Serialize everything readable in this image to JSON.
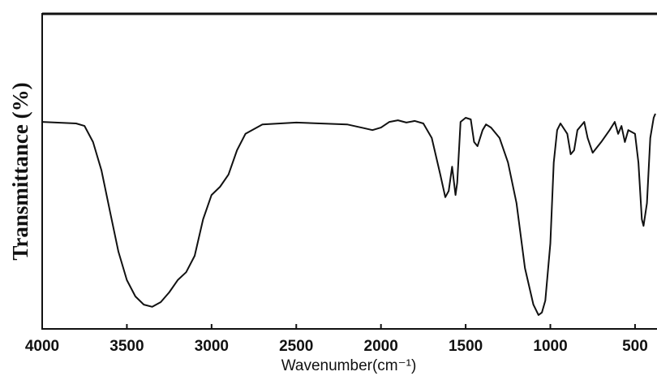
{
  "chart_data": {
    "type": "line",
    "x_label": "Wavenumber(cm⁻¹)",
    "y_label": "Transmittance (%)",
    "xlim": [
      4000,
      380
    ],
    "ylim": [
      0,
      100
    ],
    "xticks": [
      4000,
      3500,
      3000,
      2500,
      2000,
      1500,
      1000,
      500
    ],
    "color": "#111111",
    "x": [
      4000,
      3800,
      3750,
      3700,
      3650,
      3600,
      3550,
      3500,
      3450,
      3400,
      3350,
      3300,
      3250,
      3200,
      3150,
      3100,
      3050,
      3000,
      2950,
      2900,
      2850,
      2800,
      2700,
      2500,
      2200,
      2100,
      2050,
      2000,
      1950,
      1900,
      1850,
      1800,
      1750,
      1700,
      1650,
      1620,
      1600,
      1580,
      1560,
      1550,
      1530,
      1500,
      1470,
      1450,
      1430,
      1400,
      1380,
      1350,
      1300,
      1250,
      1200,
      1150,
      1100,
      1070,
      1050,
      1030,
      1000,
      980,
      960,
      940,
      900,
      880,
      860,
      840,
      800,
      780,
      750,
      700,
      650,
      620,
      600,
      580,
      560,
      540,
      500,
      480,
      460,
      450,
      430,
      410,
      390,
      380
    ],
    "values": [
      65.7,
      65.2,
      64.4,
      59.3,
      50.3,
      37.4,
      24.5,
      15.5,
      10.3,
      7.7,
      7.0,
      8.5,
      11.6,
      15.5,
      18.0,
      23.2,
      34.8,
      42.5,
      45.1,
      49.0,
      56.7,
      61.9,
      64.9,
      65.5,
      64.9,
      63.7,
      63.1,
      63.9,
      65.7,
      66.2,
      65.5,
      66.0,
      65.2,
      60.6,
      49.0,
      41.8,
      43.8,
      51.5,
      42.5,
      46.4,
      65.7,
      67.0,
      66.5,
      59.3,
      58.0,
      63.1,
      64.9,
      63.9,
      60.6,
      52.8,
      39.9,
      19.3,
      7.7,
      4.4,
      5.2,
      9.0,
      27.1,
      52.8,
      63.1,
      65.2,
      61.9,
      55.4,
      56.7,
      63.1,
      65.7,
      60.6,
      55.9,
      59.3,
      63.1,
      65.7,
      61.9,
      64.4,
      59.3,
      63.1,
      61.9,
      52.8,
      34.8,
      32.7,
      39.9,
      60.6,
      67.0,
      68.3
    ]
  }
}
